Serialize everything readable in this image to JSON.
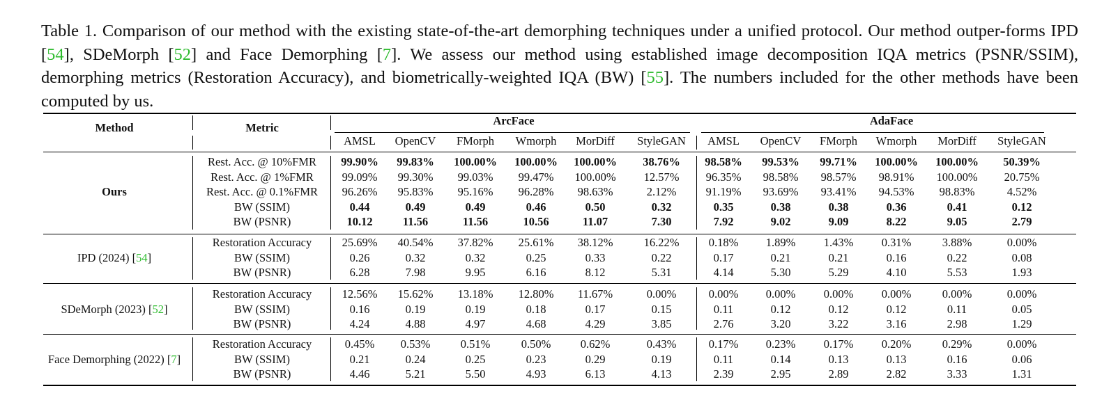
{
  "caption": {
    "p1": "Table 1. Comparison of our method with the existing state-of-the-art demorphing techniques under a unified protocol. Our method outper-forms IPD [",
    "r1": "54",
    "p2": "], SDeMorph [",
    "r2": "52",
    "p3": "] and Face Demorphing [",
    "r3": "7",
    "p4": "]. We assess our method using established image decomposition IQA metrics (PSNR/SSIM), demorphing metrics (Restoration Accuracy), and biometrically-weighted IQA (BW) [",
    "r4": "55",
    "p5": "]. The numbers included for the other methods have been computed by us."
  },
  "header": {
    "method": "Method",
    "metric": "Metric",
    "groups": [
      "ArcFace",
      "AdaFace"
    ],
    "columns": [
      "AMSL",
      "OpenCV",
      "FMorph",
      "Wmorph",
      "MorDiff",
      "StyleGAN",
      "AMSL",
      "OpenCV",
      "FMorph",
      "Wmorph",
      "MorDiff",
      "StyleGAN"
    ]
  },
  "blocks": [
    {
      "method": "Ours",
      "ref": "",
      "suffix": "",
      "method_bold": true,
      "rows": [
        {
          "metric": "Rest. Acc. @ 10%FMR",
          "bold": true,
          "values": [
            "99.90%",
            "99.83%",
            "100.00%",
            "100.00%",
            "100.00%",
            "38.76%",
            "98.58%",
            "99.53%",
            "99.71%",
            "100.00%",
            "100.00%",
            "50.39%"
          ]
        },
        {
          "metric": "Rest. Acc. @ 1%FMR",
          "bold": false,
          "values": [
            "99.09%",
            "99.30%",
            "99.03%",
            "99.47%",
            "100.00%",
            "12.57%",
            "96.35%",
            "98.58%",
            "98.57%",
            "98.91%",
            "100.00%",
            "20.75%"
          ]
        },
        {
          "metric": "Rest. Acc. @ 0.1%FMR",
          "bold": false,
          "values": [
            "96.26%",
            "95.83%",
            "95.16%",
            "96.28%",
            "98.63%",
            "2.12%",
            "91.19%",
            "93.69%",
            "93.41%",
            "94.53%",
            "98.83%",
            "4.52%"
          ]
        },
        {
          "metric": "BW (SSIM)",
          "bold": true,
          "values": [
            "0.44",
            "0.49",
            "0.49",
            "0.46",
            "0.50",
            "0.32",
            "0.35",
            "0.38",
            "0.38",
            "0.36",
            "0.41",
            "0.12"
          ]
        },
        {
          "metric": "BW (PSNR)",
          "bold": true,
          "values": [
            "10.12",
            "11.56",
            "11.56",
            "10.56",
            "11.07",
            "7.30",
            "7.92",
            "9.02",
            "9.09",
            "8.22",
            "9.05",
            "2.79"
          ]
        }
      ]
    },
    {
      "method": "IPD (2024) [",
      "ref": "54",
      "suffix": "]",
      "method_bold": false,
      "rows": [
        {
          "metric": "Restoration Accuracy",
          "bold": false,
          "values": [
            "25.69%",
            "40.54%",
            "37.82%",
            "25.61%",
            "38.12%",
            "16.22%",
            "0.18%",
            "1.89%",
            "1.43%",
            "0.31%",
            "3.88%",
            "0.00%"
          ]
        },
        {
          "metric": "BW (SSIM)",
          "bold": false,
          "values": [
            "0.26",
            "0.32",
            "0.32",
            "0.25",
            "0.33",
            "0.22",
            "0.17",
            "0.21",
            "0.21",
            "0.16",
            "0.22",
            "0.08"
          ]
        },
        {
          "metric": "BW (PSNR)",
          "bold": false,
          "values": [
            "6.28",
            "7.98",
            "9.95",
            "6.16",
            "8.12",
            "5.31",
            "4.14",
            "5.30",
            "5.29",
            "4.10",
            "5.53",
            "1.93"
          ]
        }
      ]
    },
    {
      "method": "SDeMorph (2023) [",
      "ref": "52",
      "suffix": "]",
      "method_bold": false,
      "rows": [
        {
          "metric": "Restoration Accuracy",
          "bold": false,
          "values": [
            "12.56%",
            "15.62%",
            "13.18%",
            "12.80%",
            "11.67%",
            "0.00%",
            "0.00%",
            "0.00%",
            "0.00%",
            "0.00%",
            "0.00%",
            "0.00%"
          ]
        },
        {
          "metric": "BW (SSIM)",
          "bold": false,
          "values": [
            "0.16",
            "0.19",
            "0.19",
            "0.18",
            "0.17",
            "0.15",
            "0.11",
            "0.12",
            "0.12",
            "0.12",
            "0.11",
            "0.05"
          ]
        },
        {
          "metric": "BW (PSNR)",
          "bold": false,
          "values": [
            "4.24",
            "4.88",
            "4.97",
            "4.68",
            "4.29",
            "3.85",
            "2.76",
            "3.20",
            "3.22",
            "3.16",
            "2.98",
            "1.29"
          ]
        }
      ]
    },
    {
      "method": "Face Demorphing (2022) [",
      "ref": "7",
      "suffix": "]",
      "method_bold": false,
      "rows": [
        {
          "metric": "Restoration Accuracy",
          "bold": false,
          "values": [
            "0.45%",
            "0.53%",
            "0.51%",
            "0.50%",
            "0.62%",
            "0.43%",
            "0.17%",
            "0.23%",
            "0.17%",
            "0.20%",
            "0.29%",
            "0.00%"
          ]
        },
        {
          "metric": "BW (SSIM)",
          "bold": false,
          "values": [
            "0.21",
            "0.24",
            "0.25",
            "0.23",
            "0.29",
            "0.19",
            "0.11",
            "0.14",
            "0.13",
            "0.13",
            "0.16",
            "0.06"
          ]
        },
        {
          "metric": "BW (PSNR)",
          "bold": false,
          "values": [
            "4.46",
            "5.21",
            "5.50",
            "4.93",
            "6.13",
            "4.13",
            "2.39",
            "2.95",
            "2.89",
            "2.82",
            "3.33",
            "1.31"
          ]
        }
      ]
    }
  ]
}
